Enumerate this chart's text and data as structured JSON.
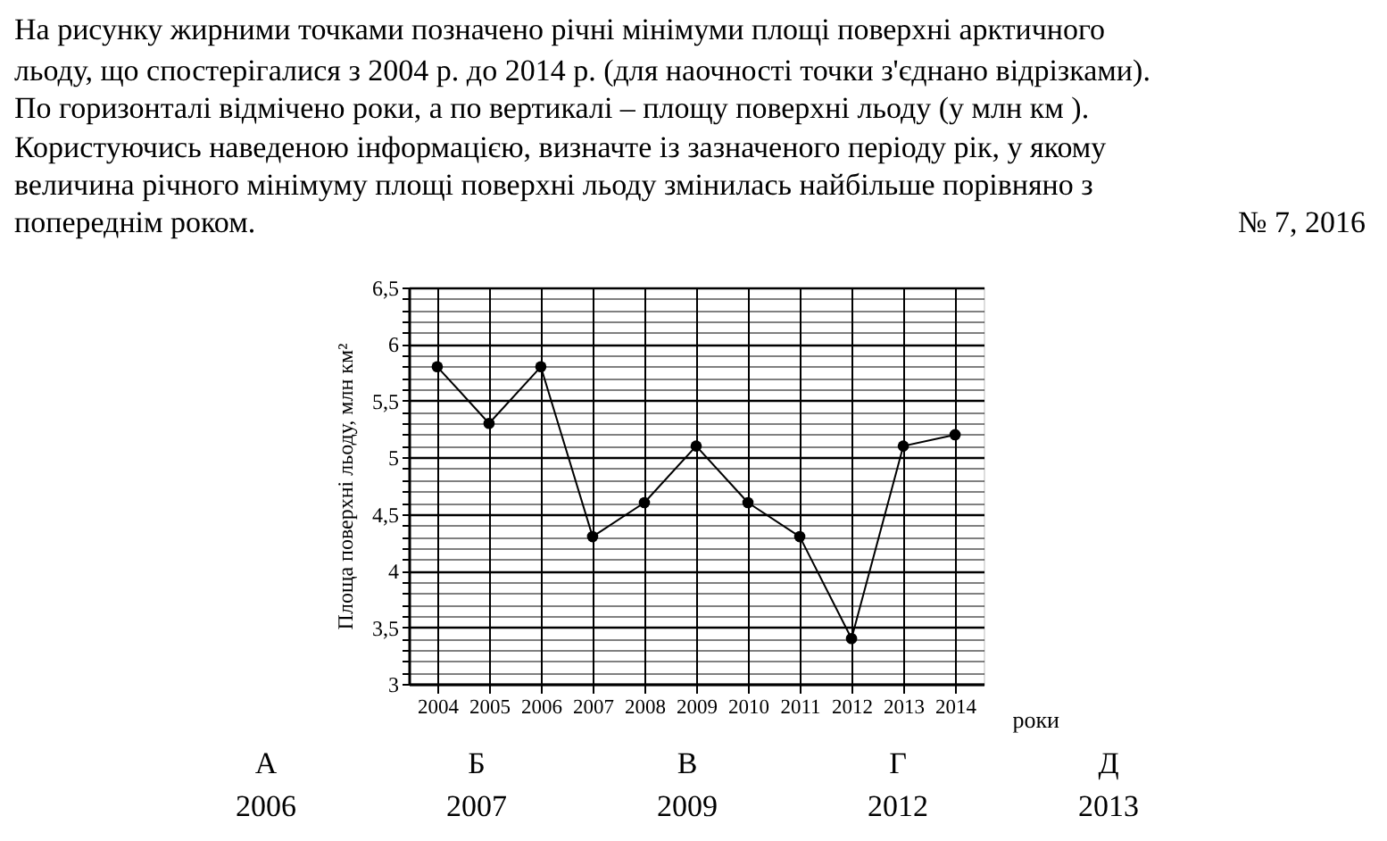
{
  "chart_data": {
    "type": "line",
    "annotations": [
      "На рисунку жирними точками позначено річні мінімуми площі поверхні арктичного",
      "льоду, що спостерігалися з 2004 р. до 2014 р. (для наочності точки з'єднано відрізками).",
      "По горизонталі відмічено роки, а по вертикалі – площу поверхні льоду (у млн км ).",
      "Користуючись наведеною інформацією, визначте із зазначеного періоду рік, у якому",
      "величина річного мінімуму площі поверхні льоду змінилась найбільше порівняно з",
      "попереднім роком.",
      "№ 7, 2016",
      "А",
      "Б",
      "В",
      "Г",
      "Д",
      "2006",
      "2007",
      "2009",
      "2012",
      "2013"
    ],
    "xlabel": "роки",
    "ylabel": "Площа поверхні льоду, млн км²",
    "categories": [
      "2004",
      "2005",
      "2006",
      "2007",
      "2008",
      "2009",
      "2010",
      "2011",
      "2012",
      "2013",
      "2014"
    ],
    "series": [
      {
        "color": "#000000",
        "values": [
          5.8,
          5.3,
          5.8,
          4.3,
          4.6,
          5.1,
          4.6,
          4.3,
          3.4,
          5.1,
          5.2
        ]
      }
    ],
    "ylim": [
      3,
      6.5
    ],
    "yticks": [
      3,
      {
        "value": 3.1,
        "label": null
      },
      {
        "value": 3.2,
        "label": null
      },
      {
        "value": 3.3,
        "label": null
      },
      {
        "value": 3.4,
        "label": null
      },
      {
        "value": 3.5,
        "label": "3,5"
      },
      {
        "value": 3.6,
        "label": null
      },
      {
        "value": 3.7,
        "label": null
      },
      {
        "value": 3.8,
        "label": null
      },
      {
        "value": 3.9,
        "label": null
      },
      4,
      {
        "value": 4.1,
        "label": null
      },
      {
        "value": 4.2,
        "label": null
      },
      {
        "value": 4.3,
        "label": null
      },
      {
        "value": 4.4,
        "label": null
      },
      {
        "value": 4.5,
        "label": "4,5"
      },
      {
        "value": 4.6,
        "label": null
      },
      {
        "value": 4.7,
        "label": null
      },
      {
        "value": 4.8,
        "label": null
      },
      {
        "value": 4.9,
        "label": null
      },
      5,
      {
        "value": 5.1,
        "label": null
      },
      {
        "value": 5.2,
        "label": null
      },
      {
        "value": 5.3,
        "label": null
      },
      {
        "value": 5.4,
        "label": null
      },
      {
        "value": 5.5,
        "label": "5,5"
      },
      {
        "value": 5.6,
        "label": null
      },
      {
        "value": 5.7,
        "label": null
      },
      {
        "value": 5.8,
        "label": null
      },
      {
        "value": 5.9,
        "label": null
      },
      6,
      {
        "value": 6.1,
        "label": null
      },
      {
        "value": 6.2,
        "label": null
      },
      {
        "value": 6.3,
        "label": null
      },
      {
        "value": 6.4,
        "label": null
      },
      {
        "value": 6.5,
        "label": "6,5"
      }
    ],
    "grid": true,
    "marker": "circle",
    "line_style": "solid",
    "legend": false
  }
}
